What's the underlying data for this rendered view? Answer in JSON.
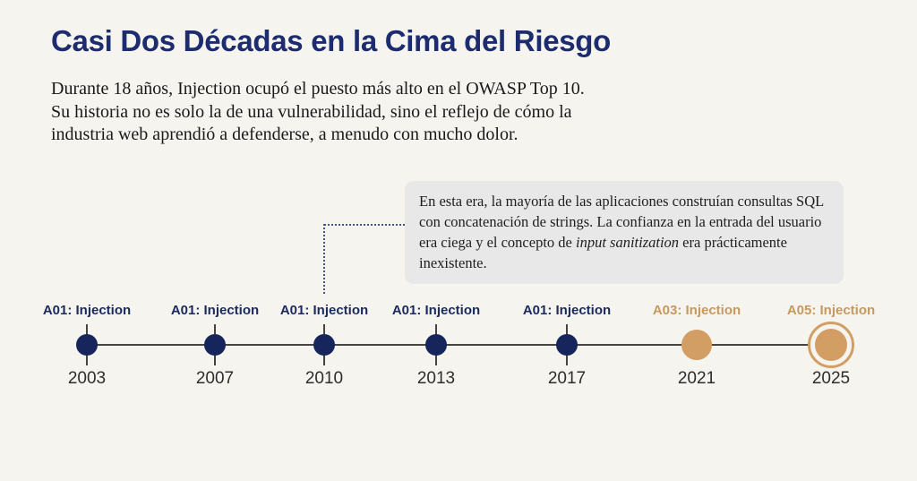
{
  "header": {
    "title": "Casi Dos Décadas en la Cima del Riesgo",
    "intro_lines": [
      "Durante 18 años, Injection ocupó el puesto más alto en el OWASP Top 10.",
      "Su historia no es solo la de una vulnerabilidad, sino el reflejo de cómo la",
      "industria web aprendió a defenderse, a menudo con mucho dolor."
    ]
  },
  "callout": {
    "text_before": "En esta era, la mayoría de las aplicaciones construían consultas SQL con concatenación de strings. La confianza en la entrada del usuario era ciega y el concepto de ",
    "italic": "input sanitization",
    "text_after": " era prácticamente inexistente."
  },
  "timeline": {
    "points": [
      {
        "year": "2003",
        "label": "A01: Injection",
        "style": "navy"
      },
      {
        "year": "2007",
        "label": "A01: Injection",
        "style": "navy"
      },
      {
        "year": "2010",
        "label": "A01: Injection",
        "style": "navy"
      },
      {
        "year": "2013",
        "label": "A01: Injection",
        "style": "navy"
      },
      {
        "year": "2017",
        "label": "A01: Injection",
        "style": "navy"
      },
      {
        "year": "2021",
        "label": "A03: Injection",
        "style": "gold"
      },
      {
        "year": "2025",
        "label": "A05: Injection",
        "style": "gold-ring"
      }
    ]
  },
  "colors": {
    "background": "#f6f4ef",
    "navy_title": "#1c2c6e",
    "navy_label": "#1b2a5e",
    "navy": "#16265c",
    "gold": "#d29e63",
    "gold_text": "#c6995f",
    "line": "#474440",
    "connector": "#46538b",
    "callout_bg": "#e9e8e8"
  }
}
